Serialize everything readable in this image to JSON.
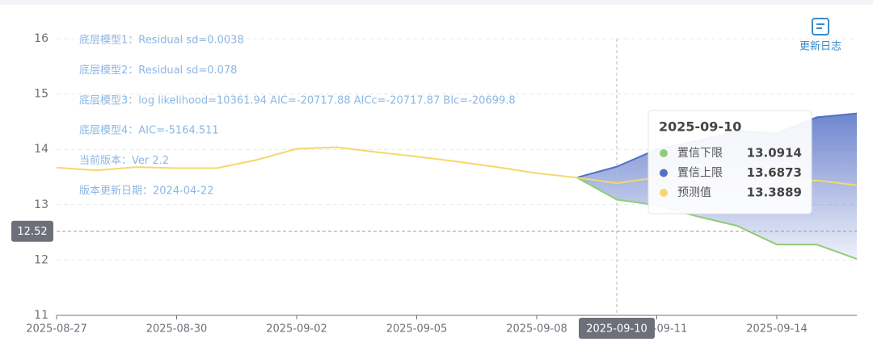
{
  "toolbar": {
    "label": "更新日志"
  },
  "chart_data": {
    "type": "line",
    "annotations": [
      "底层模型1：Residual sd=0.0038",
      "底层模型2：Residual sd=0.078",
      "底层模型3：log likelihood=10361.94 AIC=-20717.88 AICc=-20717.87 BIc=-20699.8",
      "底层模型4：AIC=-5164.511",
      "当前版本：Ver 2.2",
      "版本更新日期：2024-04-22"
    ],
    "categories": [
      "2025-08-27",
      null,
      null,
      "2025-08-30",
      null,
      null,
      "2025-09-02",
      null,
      null,
      "2025-09-05",
      null,
      null,
      "2025-09-08",
      null,
      "2025-09-10",
      "2025-09-11",
      null,
      null,
      "2025-09-14",
      null,
      null
    ],
    "series": [
      {
        "name": "置信下限",
        "color": "#91cc75",
        "values": [
          null,
          null,
          null,
          null,
          null,
          null,
          null,
          null,
          null,
          null,
          null,
          null,
          null,
          13.49,
          13.0914,
          12.99,
          12.79,
          12.62,
          12.28,
          12.28,
          12.02
        ]
      },
      {
        "name": "置信上限",
        "color": "#5470c6",
        "values": [
          null,
          null,
          null,
          null,
          null,
          null,
          null,
          null,
          null,
          null,
          null,
          null,
          null,
          13.49,
          13.6873,
          14.0,
          14.15,
          14.33,
          14.29,
          14.58,
          14.65
        ]
      },
      {
        "name": "预测值",
        "color": "#f5d76e",
        "values": [
          13.67,
          13.62,
          13.68,
          13.66,
          13.66,
          13.81,
          14.01,
          14.04,
          13.95,
          13.87,
          13.78,
          13.68,
          13.57,
          13.49,
          13.3889,
          13.49,
          13.46,
          13.35,
          13.35,
          13.44,
          13.35
        ]
      }
    ],
    "band_color": "#5470c6",
    "ylim": [
      11,
      16
    ],
    "yticks": [
      11,
      12,
      13,
      14,
      15,
      16
    ],
    "grid": true,
    "pointer": {
      "index": 14,
      "y": 12.52
    }
  }
}
